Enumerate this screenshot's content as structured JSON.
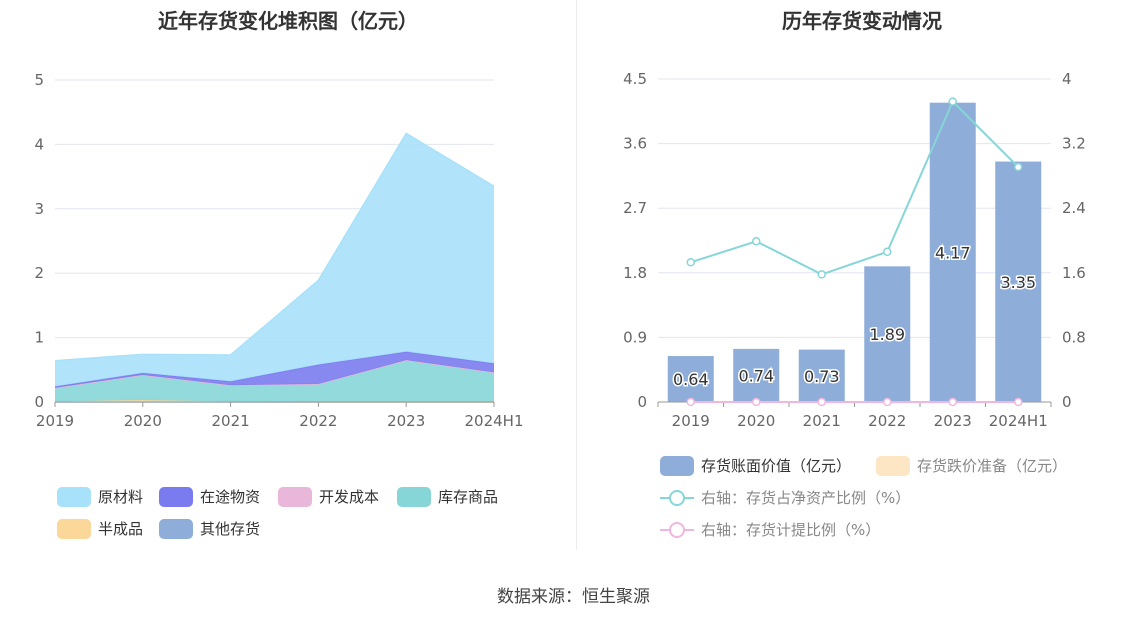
{
  "source_text": "数据来源：恒生聚源",
  "left_chart": {
    "title": "近年存货变化堆积图（亿元）",
    "legend": [
      {
        "label": "原材料",
        "color": "#a8e1fa"
      },
      {
        "label": "在途物资",
        "color": "#7b7bf0"
      },
      {
        "label": "开发成本",
        "color": "#e8b7d9"
      },
      {
        "label": "库存商品",
        "color": "#86d6d8"
      },
      {
        "label": "半成品",
        "color": "#fbd79a"
      },
      {
        "label": "其他存货",
        "color": "#8eadd9"
      }
    ]
  },
  "right_chart": {
    "title": "历年存货变动情况",
    "legend": [
      {
        "label": "存货账面价值（亿元）",
        "color": "#8eadd9"
      },
      {
        "label": "存货跌价准备（亿元）",
        "color": "#fde6c3"
      },
      {
        "label": "右轴：存货占净资产比例（%）",
        "color": "#86d6d8"
      },
      {
        "label": "右轴：存货计提比例（%）",
        "color": "#f0b6de"
      }
    ]
  },
  "chart_data": [
    {
      "type": "area",
      "stacked": true,
      "title": "近年存货变化堆积图（亿元）",
      "categories": [
        "2019",
        "2020",
        "2021",
        "2022",
        "2023",
        "2024H1"
      ],
      "ylim": [
        0,
        5
      ],
      "yticks": [
        0,
        1,
        2,
        3,
        4,
        5
      ],
      "grid": true,
      "legend_position": "bottom",
      "series": [
        {
          "name": "其他存货",
          "color": "#8eadd9",
          "values": [
            0,
            0,
            0,
            0,
            0,
            0
          ]
        },
        {
          "name": "半成品",
          "color": "#fbd79a",
          "values": [
            0.01,
            0.03,
            0.01,
            0,
            0,
            0
          ]
        },
        {
          "name": "库存商品",
          "color": "#86d6d8",
          "values": [
            0.21,
            0.39,
            0.25,
            0.28,
            0.65,
            0.46
          ]
        },
        {
          "name": "开发成本",
          "color": "#e8b7d9",
          "values": [
            0,
            0,
            0,
            0,
            0,
            0
          ]
        },
        {
          "name": "在途物资",
          "color": "#7b7bf0",
          "values": [
            0.02,
            0.03,
            0.06,
            0.3,
            0.13,
            0.14
          ]
        },
        {
          "name": "原材料",
          "color": "#a8e1fa",
          "values": [
            0.4,
            0.29,
            0.41,
            1.31,
            3.39,
            2.75
          ]
        }
      ]
    },
    {
      "type": "bar",
      "title": "历年存货变动情况",
      "categories": [
        "2019",
        "2020",
        "2021",
        "2022",
        "2023",
        "2024H1"
      ],
      "ylim": [
        0,
        4.5
      ],
      "yticks": [
        0,
        0.9,
        1.8,
        2.7,
        3.6,
        4.5
      ],
      "y2lim": [
        0,
        4
      ],
      "y2ticks": [
        0,
        0.8,
        1.6,
        2.4,
        3.2,
        4
      ],
      "grid": true,
      "legend_position": "bottom",
      "series": [
        {
          "name": "存货账面价值（亿元）",
          "type": "bar",
          "axis": "left",
          "color": "#8eadd9",
          "values": [
            0.64,
            0.74,
            0.73,
            1.89,
            4.17,
            3.35
          ],
          "labels": [
            "0.64",
            "0.74",
            "0.73",
            "1.89",
            "4.17",
            "3.35"
          ]
        },
        {
          "name": "存货跌价准备（亿元）",
          "type": "bar",
          "axis": "left",
          "color": "#fde6c3",
          "values": [
            0,
            0,
            0,
            0,
            0,
            0
          ]
        },
        {
          "name": "右轴：存货占净资产比例（%）",
          "type": "line",
          "axis": "right",
          "color": "#86d6d8",
          "values": [
            1.73,
            1.99,
            1.58,
            1.86,
            3.72,
            2.91
          ]
        },
        {
          "name": "右轴：存货计提比例（%）",
          "type": "line",
          "axis": "right",
          "color": "#f0b6de",
          "values": [
            0,
            0,
            0,
            0,
            0,
            0
          ]
        }
      ]
    }
  ]
}
